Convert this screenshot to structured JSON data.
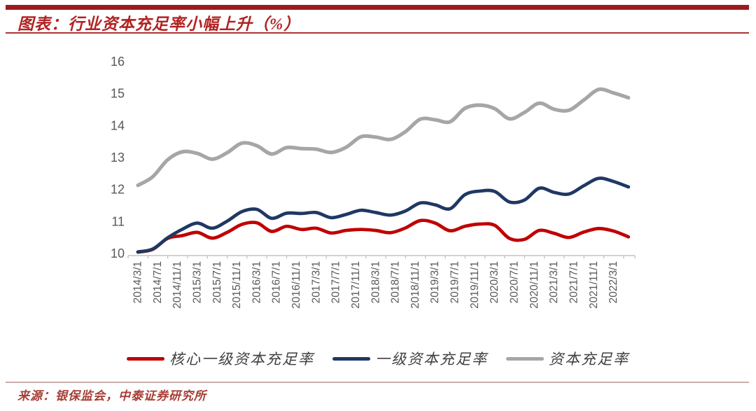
{
  "header": {
    "title": "图表：行业资本充足率小幅上升（%）"
  },
  "source": {
    "text": "来源：银保监会，中泰证券研究所"
  },
  "colors": {
    "accent_bar": "#9B1C1F",
    "title_red": "#B22222",
    "axis_gray": "#595959",
    "axis_line": "#C4C4C4"
  },
  "chart_data": {
    "type": "line",
    "title": "行业资本充足率小幅上升（%）",
    "xlabel": "",
    "ylabel": "",
    "ylim": [
      10,
      16
    ],
    "y_ticks": [
      10,
      11,
      12,
      13,
      14,
      15,
      16
    ],
    "grid": false,
    "legend_position": "bottom",
    "x": [
      "2014/3/1",
      "2014/6/1",
      "2014/9/1",
      "2014/12/1",
      "2015/3/1",
      "2015/6/1",
      "2015/9/1",
      "2015/12/1",
      "2016/3/1",
      "2016/6/1",
      "2016/9/1",
      "2016/12/1",
      "2017/3/1",
      "2017/6/1",
      "2017/9/1",
      "2017/12/1",
      "2018/3/1",
      "2018/6/1",
      "2018/9/1",
      "2018/12/1",
      "2019/3/1",
      "2019/6/1",
      "2019/9/1",
      "2019/12/1",
      "2020/3/1",
      "2020/6/1",
      "2020/9/1",
      "2020/12/1",
      "2021/3/1",
      "2021/6/1",
      "2021/9/1",
      "2021/12/1",
      "2022/3/1",
      "2022/6/1"
    ],
    "x_tick_labels": [
      "2014/3/1",
      "2014/7/1",
      "2014/11/1",
      "2015/3/1",
      "2015/7/1",
      "2015/11/1",
      "2016/3/1",
      "2016/7/1",
      "2016/11/1",
      "2017/3/1",
      "2017/7/1",
      "2017/11/1",
      "2018/3/1",
      "2018/7/1",
      "2018/11/1",
      "2019/3/1",
      "2019/7/1",
      "2019/11/1",
      "2020/3/1",
      "2020/7/1",
      "2020/11/1",
      "2021/3/1",
      "2021/7/1",
      "2021/11/1",
      "2022/3/1"
    ],
    "series": [
      {
        "key": "core-tier1-capital-adequacy-ratio",
        "name": "核心一级资本充足率",
        "color": "#C00000",
        "values": [
          10.04,
          10.13,
          10.47,
          10.56,
          10.66,
          10.48,
          10.66,
          10.91,
          10.96,
          10.69,
          10.85,
          10.75,
          10.79,
          10.64,
          10.72,
          10.75,
          10.72,
          10.65,
          10.8,
          11.03,
          10.95,
          10.71,
          10.85,
          10.92,
          10.88,
          10.47,
          10.44,
          10.72,
          10.63,
          10.5,
          10.67,
          10.78,
          10.7,
          10.52
        ]
      },
      {
        "key": "tier1-capital-adequacy-ratio",
        "name": "一级资本充足率",
        "color": "#1F3864",
        "values": [
          10.05,
          10.14,
          10.49,
          10.76,
          10.95,
          10.79,
          11.01,
          11.31,
          11.38,
          11.1,
          11.26,
          11.25,
          11.28,
          11.12,
          11.22,
          11.35,
          11.28,
          11.2,
          11.33,
          11.58,
          11.52,
          11.4,
          11.84,
          11.95,
          11.94,
          11.61,
          11.67,
          12.04,
          11.91,
          11.86,
          12.12,
          12.35,
          12.25,
          12.08
        ]
      },
      {
        "key": "capital-adequacy-ratio",
        "name": "资本充足率",
        "color": "#A6A6A6",
        "values": [
          12.13,
          12.4,
          12.93,
          13.18,
          13.13,
          12.95,
          13.15,
          13.45,
          13.37,
          13.11,
          13.31,
          13.28,
          13.26,
          13.16,
          13.32,
          13.65,
          13.64,
          13.57,
          13.81,
          14.2,
          14.18,
          14.12,
          14.54,
          14.64,
          14.53,
          14.21,
          14.41,
          14.7,
          14.51,
          14.48,
          14.8,
          15.13,
          15.02,
          14.87
        ]
      }
    ]
  }
}
